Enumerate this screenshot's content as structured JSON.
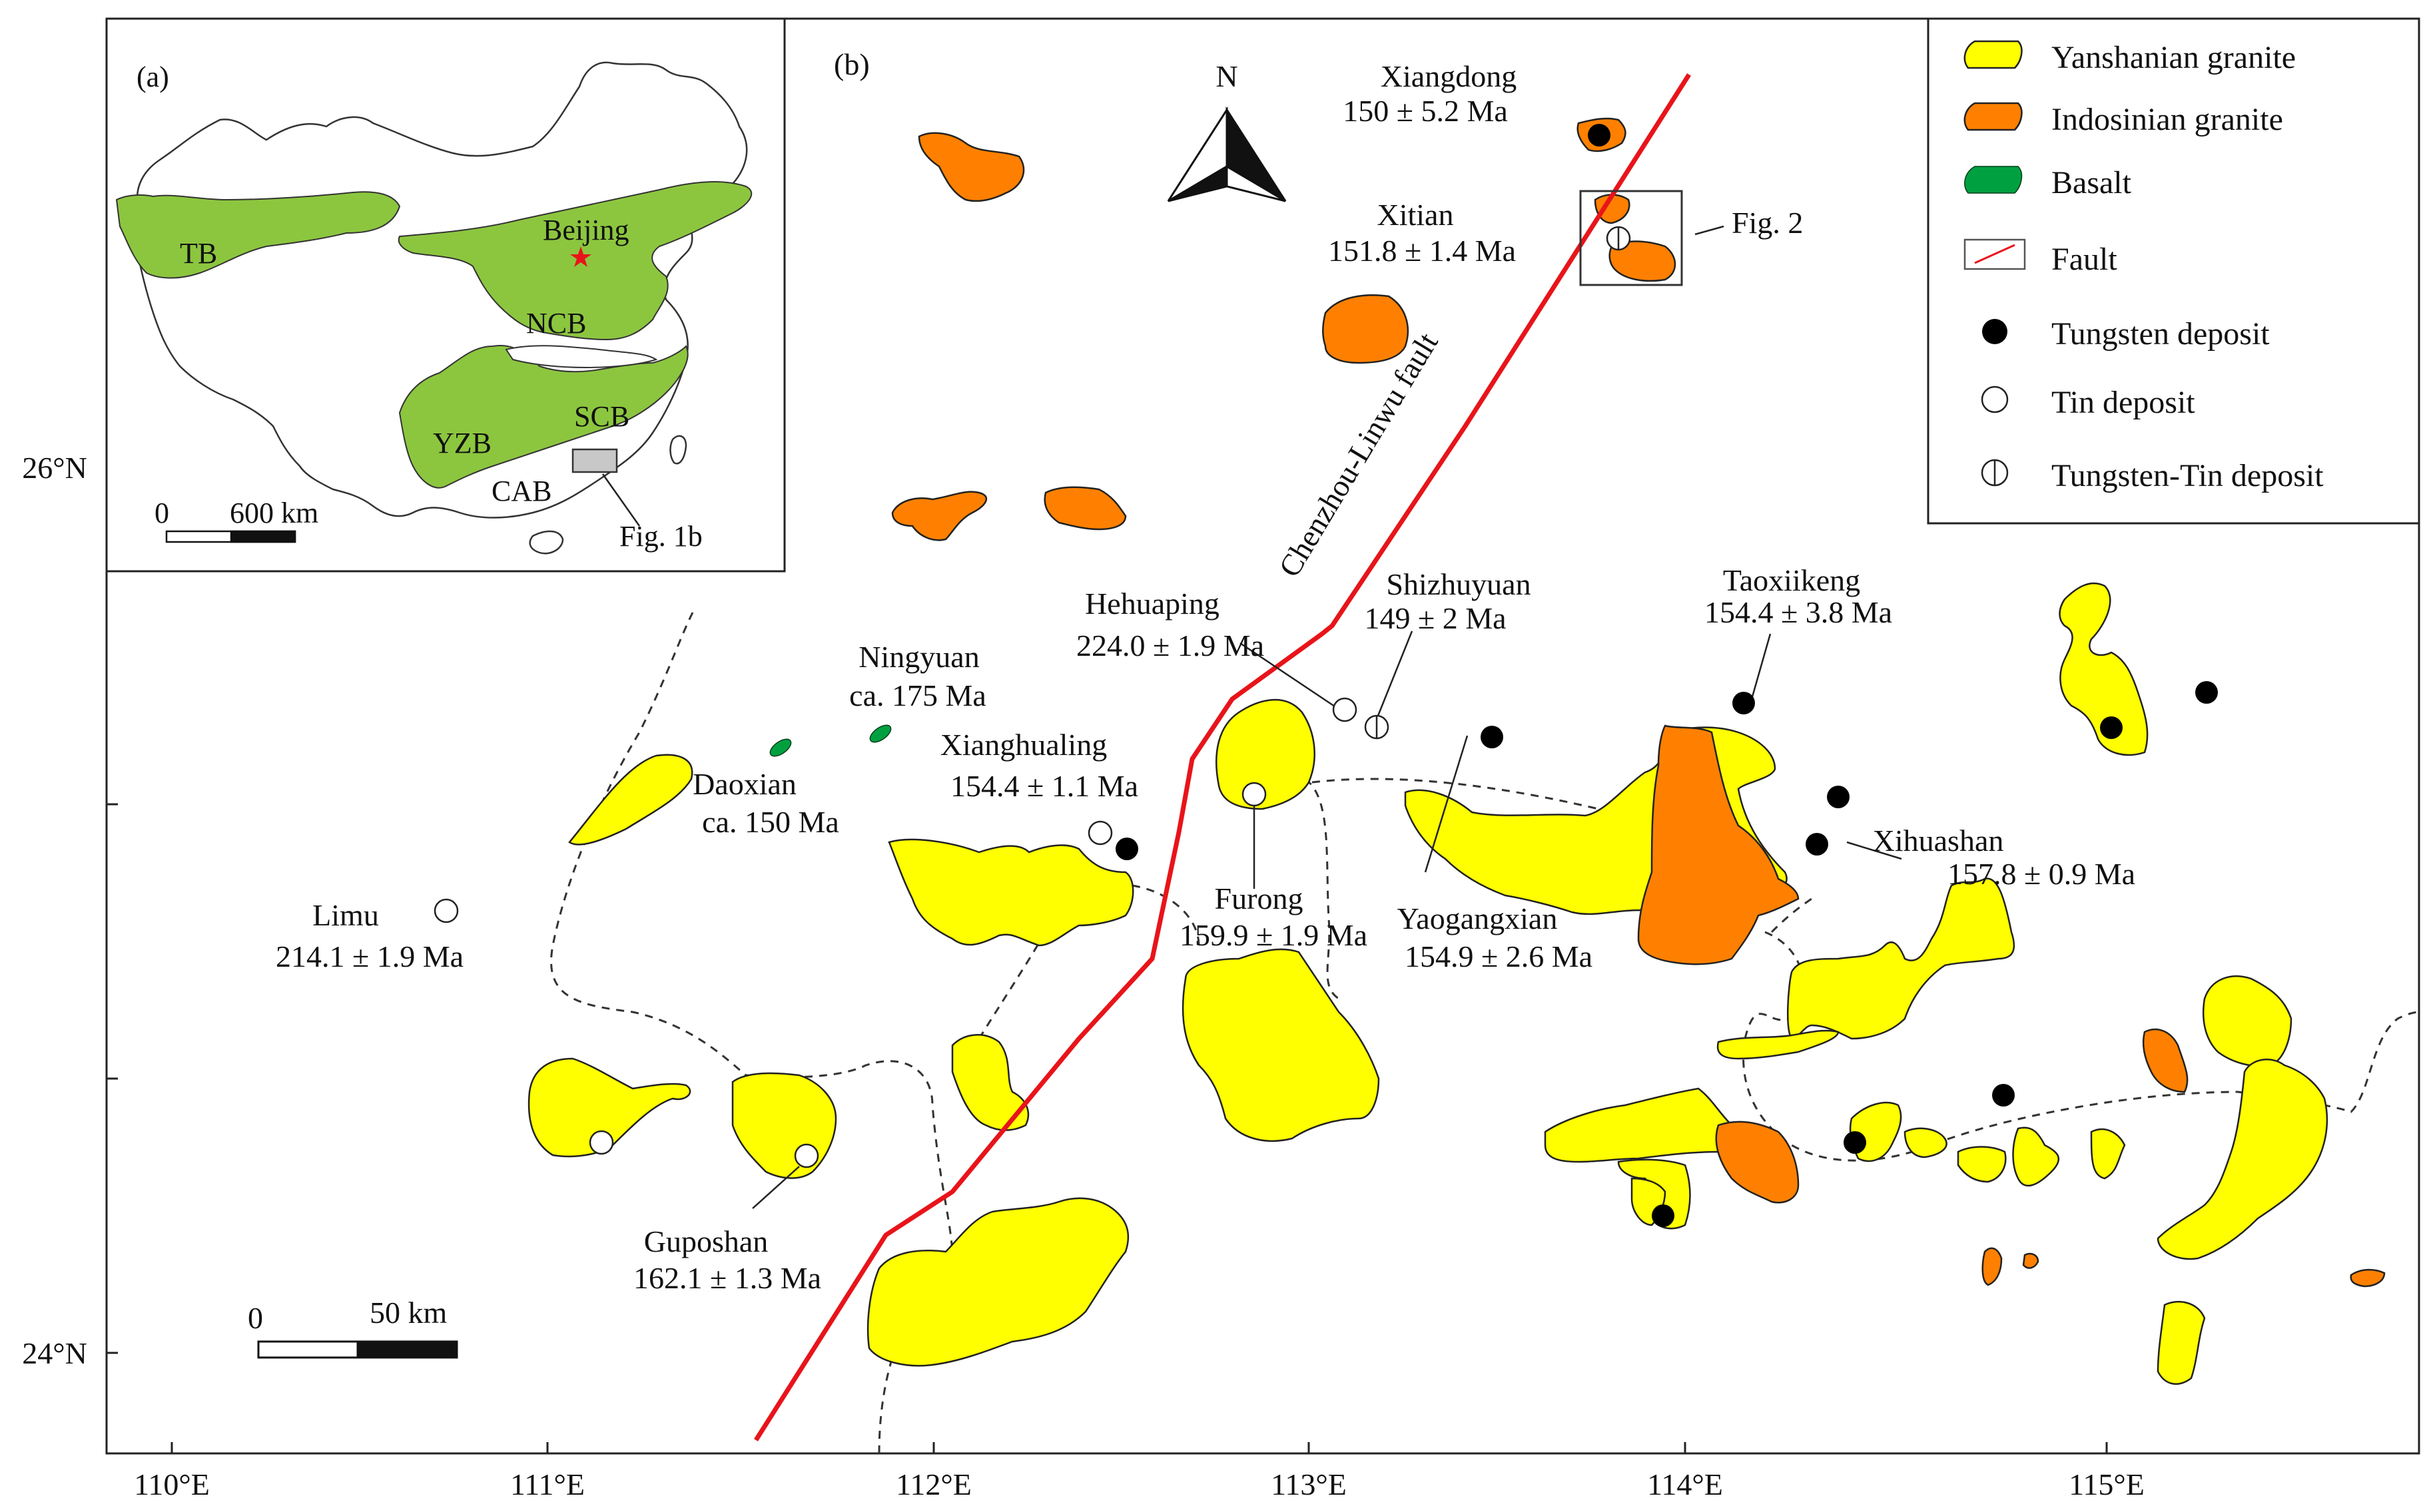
{
  "panel_labels": {
    "inset": "(a)",
    "main": "(b)"
  },
  "north_arrow": {
    "label": "N"
  },
  "fault": {
    "label": "Chenzhou-Linwu fault",
    "color": "#e8141a"
  },
  "legend": {
    "yanshanian": "Yanshanian granite",
    "indosinian": "Indosinian granite",
    "basalt": "Basalt",
    "fault": "Fault",
    "tungsten": "Tungsten deposit",
    "tin": "Tin deposit",
    "tungsten_tin": "Tungsten-Tin deposit"
  },
  "colors": {
    "yanshanian": "#ffff00",
    "indosinian": "#ff8000",
    "basalt": "#00a040",
    "block": "#8cc63f",
    "capital": "#e8141a",
    "area_box": "#c8c8c8"
  },
  "deposits": {
    "xiangdong": {
      "name": "Xiangdong",
      "age": "150 ± 5.2 Ma"
    },
    "xitian": {
      "name": "Xitian",
      "age": "151.8 ± 1.4 Ma"
    },
    "hehuaping": {
      "name": "Hehuaping",
      "age": "224.0 ± 1.9 Ma"
    },
    "shizhuyuan": {
      "name": "Shizhuyuan",
      "age": "149 ± 2 Ma"
    },
    "taoxiikeng": {
      "name": "Taoxiikeng",
      "age": "154.4 ± 3.8 Ma"
    },
    "ningyuan": {
      "name": "Ningyuan",
      "age": "ca. 175 Ma"
    },
    "daoxian": {
      "name": "Daoxian",
      "age": "ca. 150 Ma"
    },
    "xianghualing": {
      "name": "Xianghualing",
      "age": "154.4 ± 1.1 Ma"
    },
    "xihuashan": {
      "name": "Xihuashan",
      "age": "157.8 ± 0.9  Ma"
    },
    "limu": {
      "name": "Limu",
      "age": "214.1 ± 1.9 Ma"
    },
    "furong": {
      "name": "Furong",
      "age": "159.9 ± 1.9  Ma"
    },
    "yaogangxian": {
      "name": "Yaogangxian",
      "age": "154.9 ± 2.6  Ma"
    },
    "guposhan": {
      "name": "Guposhan",
      "age": "162.1 ± 1.3  Ma"
    }
  },
  "fig2_callout": "Fig. 2",
  "scale_bar": {
    "zero": "0",
    "label": "50 km"
  },
  "axes": {
    "x_ticks": [
      "110°E",
      "111°E",
      "112°E",
      "113°E",
      "114°E",
      "115°E"
    ],
    "y_ticks": [
      "26°N",
      "24°N"
    ]
  },
  "inset": {
    "blocks": {
      "tb": "TB",
      "ncb": "NCB",
      "yzb": "YZB",
      "scb": "SCB",
      "cab": "CAB"
    },
    "capital": "Beijing",
    "fig1b_label": "Fig. 1b",
    "scale_zero": "0",
    "scale_label": "600 km"
  }
}
